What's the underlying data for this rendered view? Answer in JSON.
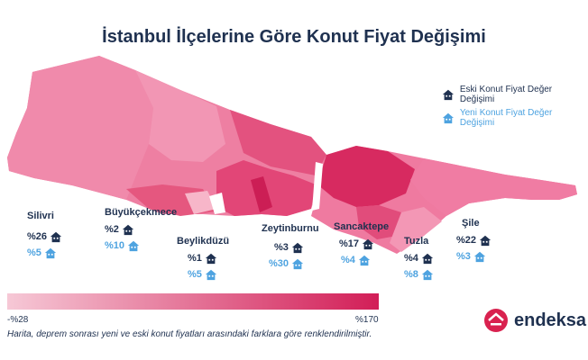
{
  "title": "İstanbul İlçelerine Göre Konut Fiyat Değişimi",
  "colors": {
    "navy": "#1f3150",
    "blue": "#4ea3e0",
    "low": "#f6c8d6",
    "high": "#d21e57"
  },
  "legend": {
    "old_label": "Eski Konut Fiyat Değer Değişimi",
    "new_label": "Yeni Konut Fiyat Değer Değişimi",
    "old_icon": "house-dark-icon",
    "new_icon": "house-light-icon"
  },
  "districts": [
    {
      "name": "Silivri",
      "old": "%26",
      "new": "%5"
    },
    {
      "name": "Büyükçekmece",
      "old": "%2",
      "new": "%10"
    },
    {
      "name": "Beylikdüzü",
      "old": "%1",
      "new": "%5"
    },
    {
      "name": "Zeytinburnu",
      "old": "%3",
      "new": "%30"
    },
    {
      "name": "Sancaktepe",
      "old": "%17",
      "new": "%4"
    },
    {
      "name": "Tuzla",
      "old": "%4",
      "new": "%8"
    },
    {
      "name": "Şile",
      "old": "%22",
      "new": "%3"
    }
  ],
  "scale": {
    "min": "-%28",
    "max": "%170"
  },
  "footnote": "Harita, deprem sonrası yeni ve eski konut fiyatları arasındaki farklara göre renklendirilmiştir.",
  "brand": {
    "name": "endeksa",
    "icon": "endeksa-logo-icon"
  }
}
